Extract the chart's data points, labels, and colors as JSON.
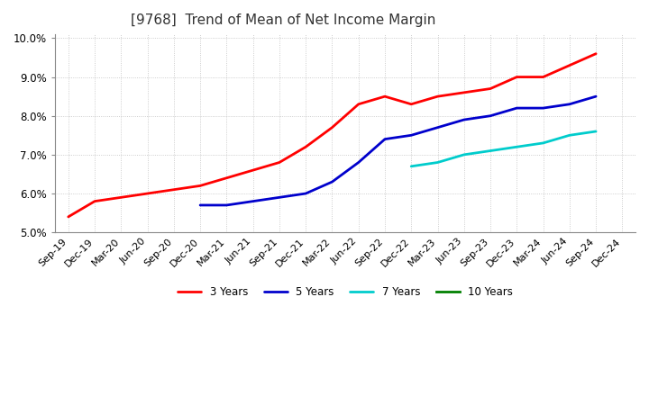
{
  "title": "[9768]  Trend of Mean of Net Income Margin",
  "ylim": [
    0.05,
    0.101
  ],
  "yticks": [
    0.05,
    0.06,
    0.07,
    0.08,
    0.09,
    0.1
  ],
  "background_color": "#ffffff",
  "grid_color": "#b0b0b0",
  "series": {
    "3 Years": {
      "color": "#ff0000",
      "x": [
        "Sep-19",
        "Dec-19",
        "Mar-20",
        "Jun-20",
        "Sep-20",
        "Dec-20",
        "Mar-21",
        "Jun-21",
        "Sep-21",
        "Dec-21",
        "Mar-22",
        "Jun-22",
        "Sep-22",
        "Dec-22",
        "Mar-23",
        "Jun-23",
        "Sep-23",
        "Dec-23",
        "Mar-24",
        "Jun-24",
        "Sep-24"
      ],
      "y": [
        0.054,
        0.058,
        0.059,
        0.06,
        0.061,
        0.062,
        0.064,
        0.066,
        0.068,
        0.072,
        0.077,
        0.083,
        0.085,
        0.083,
        0.085,
        0.086,
        0.087,
        0.09,
        0.09,
        0.093,
        0.096
      ]
    },
    "5 Years": {
      "color": "#0000cc",
      "x": [
        "Dec-20",
        "Mar-21",
        "Jun-21",
        "Sep-21",
        "Dec-21",
        "Mar-22",
        "Jun-22",
        "Sep-22",
        "Dec-22",
        "Mar-23",
        "Jun-23",
        "Sep-23",
        "Dec-23",
        "Mar-24",
        "Jun-24",
        "Sep-24"
      ],
      "y": [
        0.057,
        0.057,
        0.058,
        0.059,
        0.06,
        0.063,
        0.068,
        0.074,
        0.075,
        0.077,
        0.079,
        0.08,
        0.082,
        0.082,
        0.083,
        0.085
      ]
    },
    "7 Years": {
      "color": "#00cccc",
      "x": [
        "Dec-22",
        "Mar-23",
        "Jun-23",
        "Sep-23",
        "Dec-23",
        "Mar-24",
        "Jun-24",
        "Sep-24"
      ],
      "y": [
        0.067,
        0.068,
        0.07,
        0.071,
        0.072,
        0.073,
        0.075,
        0.076
      ]
    },
    "10 Years": {
      "color": "#008000",
      "x": [],
      "y": []
    }
  },
  "x_all": [
    "Sep-19",
    "Dec-19",
    "Mar-20",
    "Jun-20",
    "Sep-20",
    "Dec-20",
    "Mar-21",
    "Jun-21",
    "Sep-21",
    "Dec-21",
    "Mar-22",
    "Jun-22",
    "Sep-22",
    "Dec-22",
    "Mar-23",
    "Jun-23",
    "Sep-23",
    "Dec-23",
    "Mar-24",
    "Jun-24",
    "Sep-24",
    "Dec-24"
  ],
  "legend_labels": [
    "3 Years",
    "5 Years",
    "7 Years",
    "10 Years"
  ],
  "legend_colors": [
    "#ff0000",
    "#0000cc",
    "#00cccc",
    "#008000"
  ],
  "title_fontsize": 11,
  "tick_fontsize": 8,
  "linewidth": 2.0
}
